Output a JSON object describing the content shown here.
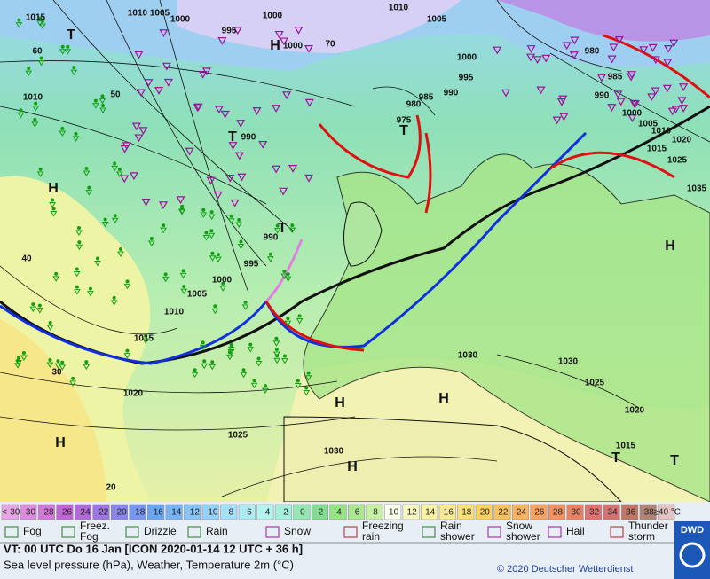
{
  "map_labels": [
    "1015",
    "1010",
    "1005",
    "1000",
    "995",
    "1000",
    "H",
    "1000",
    "1010",
    "1005",
    "1000",
    "995",
    "990",
    "985",
    "980",
    "975",
    "1010",
    "990",
    "T",
    "T",
    "T",
    "H",
    "990",
    "T",
    "995",
    "1000",
    "1005",
    "1010",
    "1015",
    "1020",
    "1025",
    "1030",
    "H",
    "H",
    "H",
    "1030",
    "1030",
    "1025",
    "1020",
    "1015",
    "T",
    "T",
    "H",
    "980",
    "985",
    "990",
    "1000",
    "1005",
    "1010",
    "1020",
    "1015",
    "1025",
    "1035",
    "H",
    "60",
    "50",
    "40",
    "30",
    "20",
    "70"
  ],
  "colorscale": [
    {
      "label": "<-30",
      "color": "#e6a6e6"
    },
    {
      "label": "-30",
      "color": "#dc8cdc"
    },
    {
      "label": "-28",
      "color": "#d278d8"
    },
    {
      "label": "-26",
      "color": "#c066d2"
    },
    {
      "label": "-24",
      "color": "#b06ad8"
    },
    {
      "label": "-22",
      "color": "#9c76e2"
    },
    {
      "label": "-20",
      "color": "#8a86ea"
    },
    {
      "label": "-18",
      "color": "#7896f0"
    },
    {
      "label": "-16",
      "color": "#68a6f2"
    },
    {
      "label": "-14",
      "color": "#78b4f4"
    },
    {
      "label": "-12",
      "color": "#88c4f8"
    },
    {
      "label": "-10",
      "color": "#96d2f8"
    },
    {
      "label": "-8",
      "color": "#a4e0f8"
    },
    {
      "label": "-6",
      "color": "#acecf2"
    },
    {
      "label": "-4",
      "color": "#b4f4ee"
    },
    {
      "label": "-2",
      "color": "#a4f0dc"
    },
    {
      "label": "0",
      "color": "#94e6b2"
    },
    {
      "label": "2",
      "color": "#84dc92"
    },
    {
      "label": "4",
      "color": "#96e284"
    },
    {
      "label": "6",
      "color": "#ace894"
    },
    {
      "label": "8",
      "color": "#c6f0a6"
    },
    {
      "label": "10",
      "color": "#faffee"
    },
    {
      "label": "12",
      "color": "#f8f8c4"
    },
    {
      "label": "14",
      "color": "#f8f2a4"
    },
    {
      "label": "16",
      "color": "#f8ea92"
    },
    {
      "label": "18",
      "color": "#f8e076"
    },
    {
      "label": "20",
      "color": "#f8d264"
    },
    {
      "label": "22",
      "color": "#f8c262"
    },
    {
      "label": "24",
      "color": "#f8b262"
    },
    {
      "label": "26",
      "color": "#f8a262"
    },
    {
      "label": "28",
      "color": "#f09262"
    },
    {
      "label": "30",
      "color": "#e88262"
    },
    {
      "label": "32",
      "color": "#e07272"
    },
    {
      "label": "34",
      "color": "#d27272"
    },
    {
      "label": "36",
      "color": "#c27664"
    },
    {
      "label": "38",
      "color": "#b08474"
    },
    {
      "label": "≥40 °C",
      "color": "#e2c4c4"
    }
  ],
  "legend": [
    {
      "lines": [
        "Fog"
      ]
    },
    {
      "lines": [
        "Freez.",
        "Fog"
      ]
    },
    {
      "lines": [
        "Drizzle"
      ]
    },
    {
      "lines": [
        "Rain"
      ]
    },
    {
      "lines": [
        "Snow"
      ]
    },
    {
      "lines": [
        "Freezing",
        "rain"
      ]
    },
    {
      "lines": [
        "Rain",
        "shower"
      ]
    },
    {
      "lines": [
        "Snow",
        "shower"
      ]
    },
    {
      "lines": [
        "Hail"
      ]
    },
    {
      "lines": [
        "Thunder",
        "storm"
      ]
    }
  ],
  "footer": {
    "valid_time": "VT: 00 UTC Do  16 Jan [ICON 2020-01-14  12 UTC + 36 h]",
    "description": "Sea level pressure (hPa), Weather, Temperature 2m (°C)",
    "copyright": "© 2020 Deutscher Wetterdienst",
    "logo": "DWD"
  }
}
